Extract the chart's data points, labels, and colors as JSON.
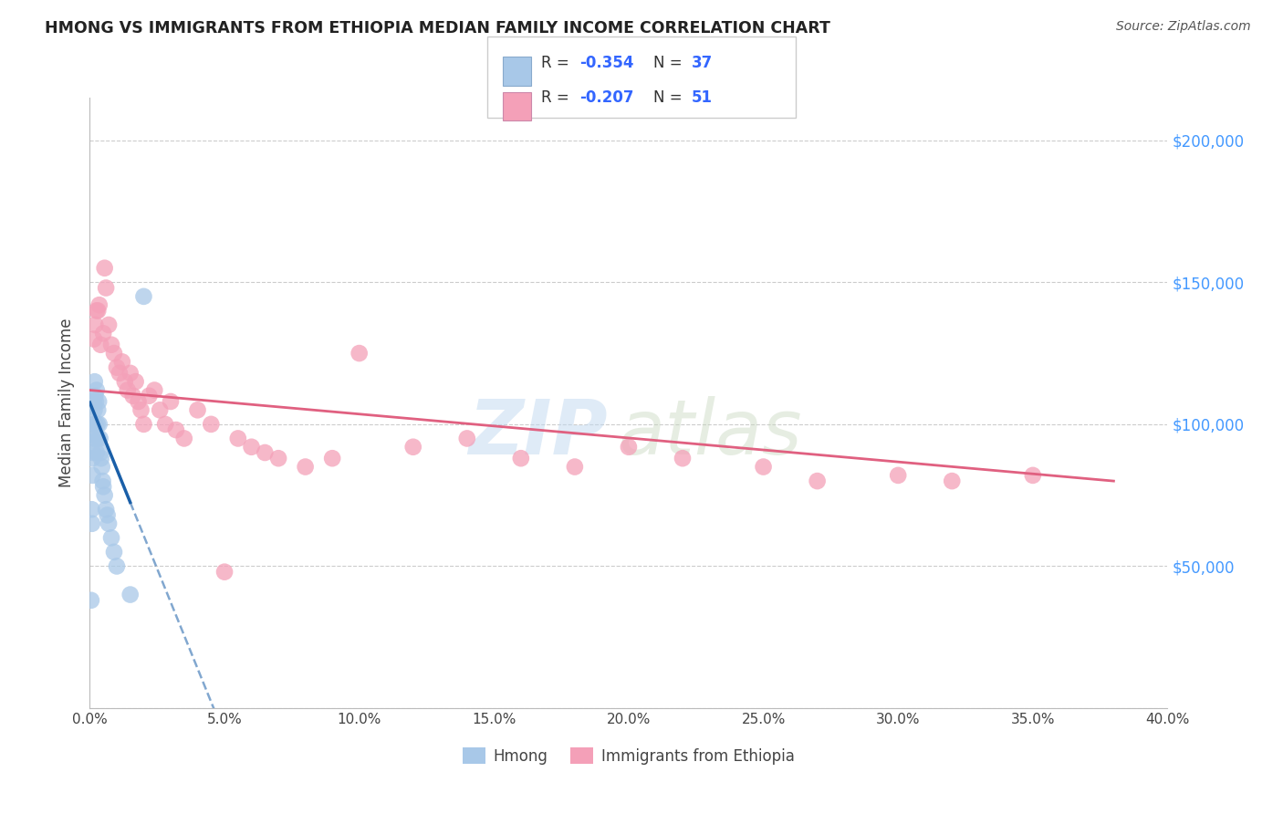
{
  "title": "HMONG VS IMMIGRANTS FROM ETHIOPIA MEDIAN FAMILY INCOME CORRELATION CHART",
  "source": "Source: ZipAtlas.com",
  "ylabel": "Median Family Income",
  "xlabel_ticks": [
    "0.0%",
    "5.0%",
    "10.0%",
    "15.0%",
    "20.0%",
    "25.0%",
    "30.0%",
    "35.0%",
    "40.0%"
  ],
  "xlabel_vals": [
    0,
    5,
    10,
    15,
    20,
    25,
    30,
    35,
    40
  ],
  "yright_labels": [
    "$50,000",
    "$100,000",
    "$150,000",
    "$200,000"
  ],
  "yright_vals": [
    50000,
    100000,
    150000,
    200000
  ],
  "ytick_vals": [
    0,
    50000,
    100000,
    150000,
    200000
  ],
  "xlim": [
    0,
    40
  ],
  "ylim": [
    0,
    215000
  ],
  "hmong_color": "#a8c8e8",
  "ethiopia_color": "#f4a0b8",
  "hmong_line_color": "#1a5fa8",
  "ethiopia_line_color": "#e06080",
  "watermark_zip": "ZIP",
  "watermark_atlas": "atlas",
  "background_color": "#ffffff",
  "grid_color": "#cccccc",
  "hmong_x": [
    0.05,
    0.07,
    0.08,
    0.1,
    0.1,
    0.12,
    0.13,
    0.15,
    0.15,
    0.17,
    0.18,
    0.2,
    0.2,
    0.22,
    0.23,
    0.25,
    0.25,
    0.28,
    0.3,
    0.3,
    0.33,
    0.35,
    0.38,
    0.4,
    0.42,
    0.45,
    0.48,
    0.5,
    0.55,
    0.6,
    0.65,
    0.7,
    0.8,
    0.9,
    1.0,
    1.5,
    2.0
  ],
  "hmong_y": [
    38000,
    70000,
    65000,
    82000,
    88000,
    90000,
    95000,
    100000,
    108000,
    105000,
    115000,
    110000,
    100000,
    108000,
    95000,
    112000,
    90000,
    100000,
    105000,
    95000,
    108000,
    100000,
    95000,
    90000,
    88000,
    85000,
    80000,
    78000,
    75000,
    70000,
    68000,
    65000,
    60000,
    55000,
    50000,
    40000,
    145000
  ],
  "ethiopia_x": [
    0.15,
    0.2,
    0.3,
    0.4,
    0.5,
    0.55,
    0.6,
    0.7,
    0.8,
    0.9,
    1.0,
    1.1,
    1.2,
    1.3,
    1.4,
    1.5,
    1.6,
    1.7,
    1.8,
    1.9,
    2.0,
    2.2,
    2.4,
    2.6,
    2.8,
    3.0,
    3.2,
    3.5,
    4.0,
    4.5,
    5.0,
    5.5,
    6.0,
    6.5,
    7.0,
    8.0,
    9.0,
    10.0,
    12.0,
    14.0,
    16.0,
    18.0,
    20.0,
    22.0,
    25.0,
    27.0,
    30.0,
    32.0,
    35.0,
    0.25,
    0.35
  ],
  "ethiopia_y": [
    130000,
    135000,
    140000,
    128000,
    132000,
    155000,
    148000,
    135000,
    128000,
    125000,
    120000,
    118000,
    122000,
    115000,
    112000,
    118000,
    110000,
    115000,
    108000,
    105000,
    100000,
    110000,
    112000,
    105000,
    100000,
    108000,
    98000,
    95000,
    105000,
    100000,
    48000,
    95000,
    92000,
    90000,
    88000,
    85000,
    88000,
    125000,
    92000,
    95000,
    88000,
    85000,
    92000,
    88000,
    85000,
    80000,
    82000,
    80000,
    82000,
    140000,
    142000
  ]
}
